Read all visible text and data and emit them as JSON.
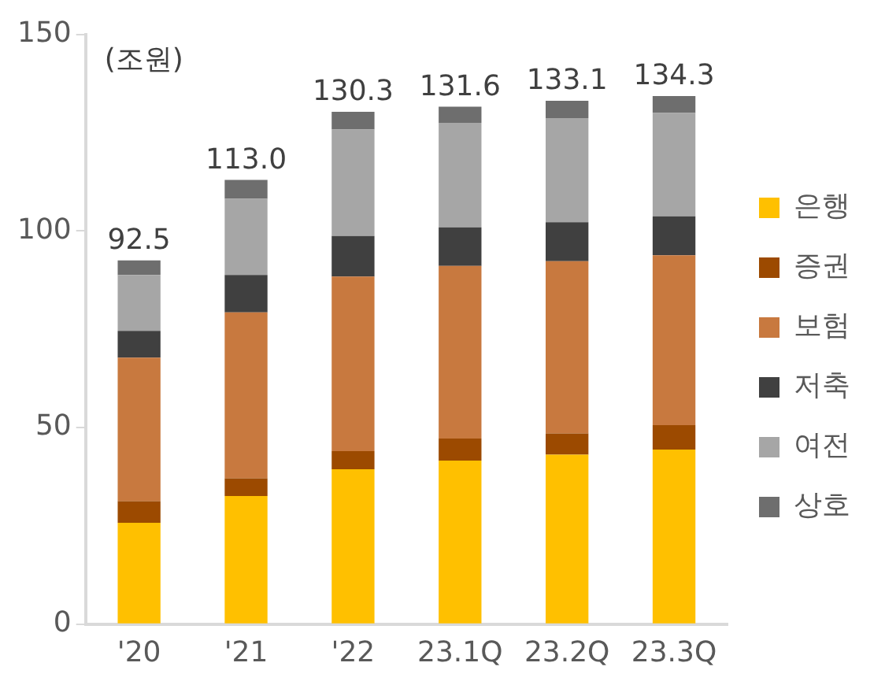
{
  "chart_data": {
    "type": "bar",
    "stacked": true,
    "categories": [
      "'20",
      "'21",
      "'22",
      "23.1Q",
      "23.2Q",
      "23.3Q"
    ],
    "series": [
      {
        "name": "은행",
        "color": "#ffc000",
        "values": [
          25.8,
          32.6,
          39.4,
          41.6,
          43.1,
          44.4
        ]
      },
      {
        "name": "증권",
        "color": "#9c4a00",
        "values": [
          5.5,
          4.5,
          4.6,
          5.6,
          5.4,
          6.2
        ]
      },
      {
        "name": "보험",
        "color": "#c8793f",
        "values": [
          36.5,
          42.2,
          44.4,
          43.9,
          43.8,
          43.2
        ]
      },
      {
        "name": "저축",
        "color": "#404040",
        "values": [
          6.8,
          9.5,
          10.3,
          9.8,
          9.9,
          9.9
        ]
      },
      {
        "name": "여전",
        "color": "#a6a6a6",
        "values": [
          14.2,
          19.4,
          27.1,
          26.6,
          26.5,
          26.3
        ]
      },
      {
        "name": "상호",
        "color": "#6e6e6e",
        "values": [
          3.7,
          4.8,
          4.5,
          4.1,
          4.4,
          4.3
        ]
      }
    ],
    "totals": [
      "92.5",
      "113.0",
      "130.3",
      "131.6",
      "133.1",
      "134.3"
    ],
    "annotations": [
      "(조원)"
    ],
    "ylim": [
      0,
      150
    ],
    "yticks": [
      0,
      50,
      100,
      150
    ],
    "grid": false,
    "legend": "right"
  }
}
